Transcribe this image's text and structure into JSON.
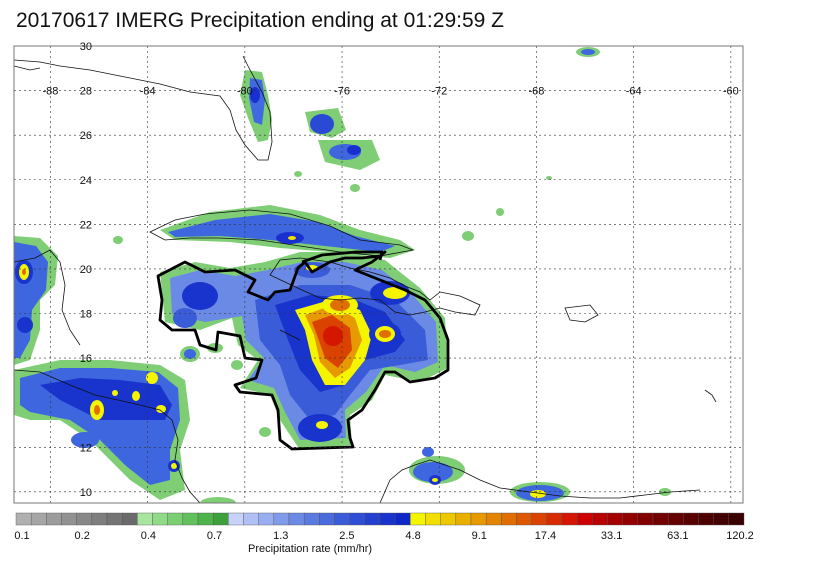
{
  "title": "20170617 IMERG Precipitation ending at 01:29:59 Z",
  "map": {
    "lon_labels": [
      "-88",
      "-84",
      "-80",
      "-76",
      "-72",
      "-68",
      "-64",
      "-60"
    ],
    "lat_labels": [
      "30",
      "28",
      "26",
      "24",
      "22",
      "20",
      "18",
      "16",
      "12",
      "10"
    ],
    "lon_range": [
      -89.5,
      -59.5
    ],
    "lat_range": [
      9.5,
      30
    ],
    "projection": "lat-lon grid",
    "grid": "dotted"
  },
  "colorbar": {
    "title": "Precipitation rate (mm/hr)",
    "tick_labels": [
      "0.1",
      "0.2",
      "0.4",
      "0.7",
      "1.3",
      "2.5",
      "4.8",
      "9.1",
      "17.4",
      "33.1",
      "63.1",
      "120.2"
    ],
    "colors": [
      "#b0b0b0",
      "#a6a6a6",
      "#9c9c9c",
      "#929292",
      "#888888",
      "#7e7e7e",
      "#747474",
      "#6a6a6a",
      "#a8e6a0",
      "#8fdb88",
      "#79cf72",
      "#62c15d",
      "#4fb34b",
      "#3ea03b",
      "#c8d2f8",
      "#b0c0f5",
      "#98aef0",
      "#7f9bea",
      "#6b8ae5",
      "#5a7ae0",
      "#4a6bdc",
      "#3b5cd8",
      "#2e4ed5",
      "#2340d0",
      "#1834cc",
      "#0e28c8",
      "#f5f500",
      "#f2df00",
      "#eec800",
      "#eab000",
      "#e69a00",
      "#e38400",
      "#e06e00",
      "#dd5800",
      "#da4200",
      "#d82c00",
      "#d51600",
      "#cc0000",
      "#b80000",
      "#a40000",
      "#920000",
      "#820000",
      "#720000",
      "#640000",
      "#580000",
      "#4c0000",
      "#420000",
      "#3a0000"
    ]
  }
}
